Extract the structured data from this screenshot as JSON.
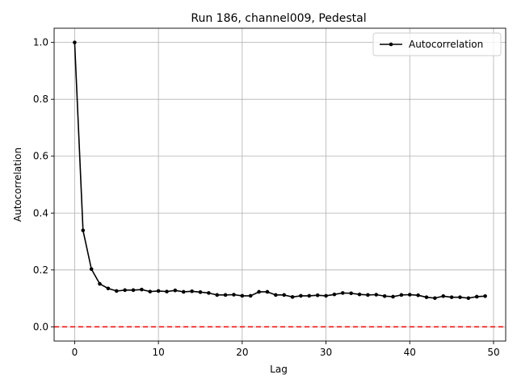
{
  "chart_data": {
    "type": "line",
    "title": "Run 186, channel009, Pedestal",
    "xlabel": "Lag",
    "ylabel": "Autocorrelation",
    "xlim": [
      -2.45,
      51.45
    ],
    "ylim": [
      -0.05,
      1.05
    ],
    "xticks": [
      0,
      10,
      20,
      30,
      40,
      50
    ],
    "yticks": [
      0.0,
      0.2,
      0.4,
      0.6,
      0.8,
      1.0
    ],
    "xtick_labels": [
      "0",
      "10",
      "20",
      "30",
      "40",
      "50"
    ],
    "ytick_labels": [
      "0.0",
      "0.2",
      "0.4",
      "0.6",
      "0.8",
      "1.0"
    ],
    "grid": true,
    "legend": {
      "position": "top-right",
      "entries": [
        "Autocorrelation"
      ]
    },
    "reference_line": {
      "y": 0,
      "style": "dashed",
      "color": "#ff0000"
    },
    "series": [
      {
        "name": "Autocorrelation",
        "color": "#000000",
        "marker": "circle",
        "x": [
          0,
          1,
          2,
          3,
          4,
          5,
          6,
          7,
          8,
          9,
          10,
          11,
          12,
          13,
          14,
          15,
          16,
          17,
          18,
          19,
          20,
          21,
          22,
          23,
          24,
          25,
          26,
          27,
          28,
          29,
          30,
          31,
          32,
          33,
          34,
          35,
          36,
          37,
          38,
          39,
          40,
          41,
          42,
          43,
          44,
          45,
          46,
          47,
          48,
          49
        ],
        "values": [
          1.0,
          0.339,
          0.203,
          0.151,
          0.135,
          0.126,
          0.129,
          0.129,
          0.131,
          0.124,
          0.126,
          0.124,
          0.128,
          0.123,
          0.125,
          0.122,
          0.119,
          0.112,
          0.112,
          0.113,
          0.109,
          0.109,
          0.123,
          0.123,
          0.112,
          0.112,
          0.105,
          0.109,
          0.109,
          0.111,
          0.109,
          0.114,
          0.119,
          0.118,
          0.114,
          0.112,
          0.113,
          0.108,
          0.106,
          0.112,
          0.113,
          0.111,
          0.104,
          0.101,
          0.108,
          0.104,
          0.104,
          0.101,
          0.106,
          0.108
        ]
      }
    ]
  }
}
